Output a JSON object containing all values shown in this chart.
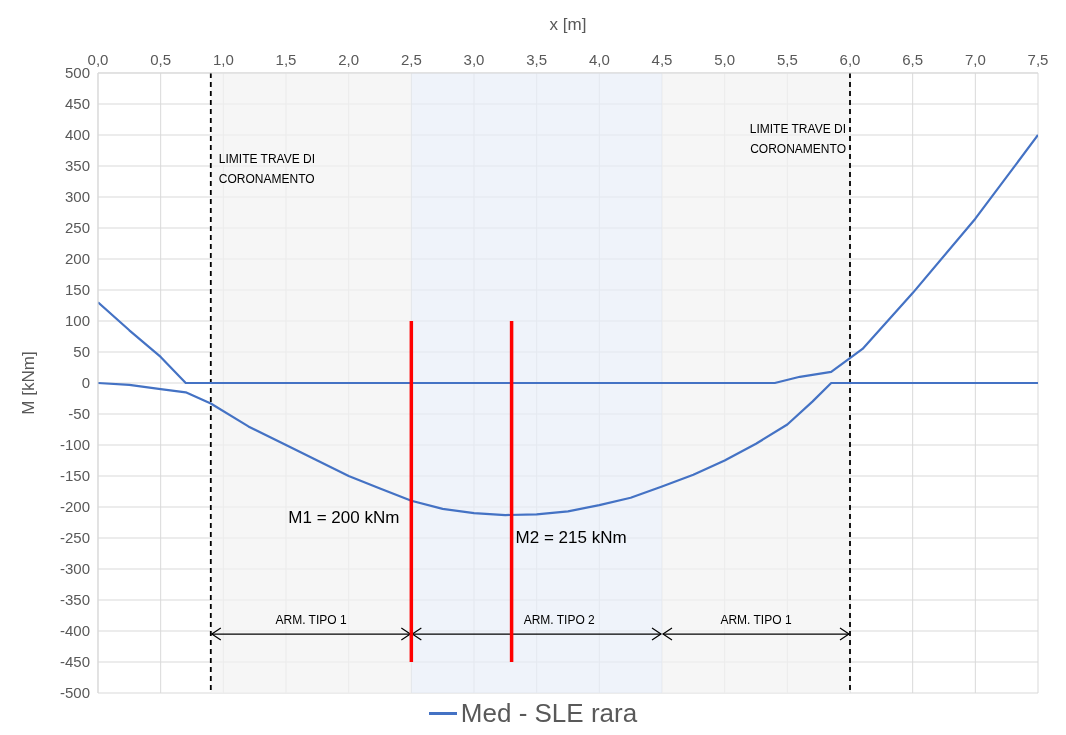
{
  "chart_data": {
    "type": "line",
    "xlabel": "x [m]",
    "ylabel": "M [kNm]",
    "xlim": [
      0,
      7.5
    ],
    "xticks": [
      {
        "value": 0,
        "label": "0,0"
      },
      {
        "value": 0.5,
        "label": "0,5"
      },
      {
        "value": 1,
        "label": "1,0"
      },
      {
        "value": 1.5,
        "label": "1,5"
      },
      {
        "value": 2,
        "label": "2,0"
      },
      {
        "value": 2.5,
        "label": "2,5"
      },
      {
        "value": 3,
        "label": "3,0"
      },
      {
        "value": 3.5,
        "label": "3,5"
      },
      {
        "value": 4,
        "label": "4,0"
      },
      {
        "value": 4.5,
        "label": "4,5"
      },
      {
        "value": 5,
        "label": "5,0"
      },
      {
        "value": 5.5,
        "label": "5,5"
      },
      {
        "value": 6,
        "label": "6,0"
      },
      {
        "value": 6.5,
        "label": "6,5"
      },
      {
        "value": 7,
        "label": "7,0"
      },
      {
        "value": 7.5,
        "label": "7,5"
      }
    ],
    "ylim": [
      -500,
      500
    ],
    "yticks": [
      -500,
      -450,
      -400,
      -350,
      -300,
      -250,
      -200,
      -150,
      -100,
      -50,
      0,
      50,
      100,
      150,
      200,
      250,
      300,
      350,
      400,
      450,
      500
    ],
    "grid": true,
    "legend": "bottom",
    "marker": "none",
    "series": [
      {
        "name": "Med - SLE rara",
        "color": "#4472c4",
        "x": [
          0,
          0.25,
          0.5,
          0.7,
          0.9,
          1.2,
          1.5,
          1.75,
          2,
          2.25,
          2.5,
          2.75,
          3,
          3.25,
          3.5,
          3.75,
          4,
          4.25,
          4.5,
          4.75,
          5,
          5.25,
          5.5,
          5.7,
          5.85,
          7.5
        ],
        "values": [
          0,
          -3,
          -10,
          -15,
          -33,
          -70,
          -100,
          -125,
          -150,
          -170,
          -190,
          -203,
          -210,
          -213,
          -212,
          -207,
          -197,
          -185,
          -167,
          -148,
          -125,
          -98,
          -67,
          -30,
          0,
          0
        ]
      },
      {
        "color": "#4472c4",
        "x": [
          0,
          0.25,
          0.5,
          0.7,
          5.4,
          5.6,
          5.85,
          6.1,
          6.5,
          7,
          7.5
        ],
        "values": [
          130,
          85,
          42,
          0,
          0,
          10,
          18,
          55,
          145,
          265,
          400
        ]
      },
      {
        "color": "#ff0000",
        "x": [
          2.5,
          2.5
        ],
        "values": [
          100,
          -450
        ]
      },
      {
        "color": "#ff0000",
        "x": [
          3.3,
          3.3
        ],
        "values": [
          100,
          -450
        ]
      }
    ],
    "ref_lines": [
      {
        "axis": "x",
        "value": 0.9,
        "label": "LIMITE TRAVE DI CORONAMENTO",
        "color": "#000000",
        "line_style": "dashed"
      },
      {
        "axis": "x",
        "value": 6,
        "label": "LIMITE TRAVE DI CORONAMENTO",
        "color": "#000000",
        "line_style": "dashed"
      }
    ],
    "bands": [
      {
        "axis": "x",
        "from": 0.9,
        "to": 2.5,
        "label": "ARM. TIPO 1",
        "color": "#f2f2f2"
      },
      {
        "axis": "x",
        "from": 2.5,
        "to": 4.5,
        "label": "ARM. TIPO 2",
        "color": "#e8eef8"
      },
      {
        "axis": "x",
        "from": 4.5,
        "to": 6,
        "label": "ARM. TIPO 1",
        "color": "#f2f2f2"
      }
    ],
    "annotations": [
      {
        "text": "M1 = 200 kNm",
        "x": 2.5,
        "y": -190
      },
      {
        "text": "M2 = 215 kNm",
        "x": 3.3,
        "y": -213
      }
    ]
  }
}
